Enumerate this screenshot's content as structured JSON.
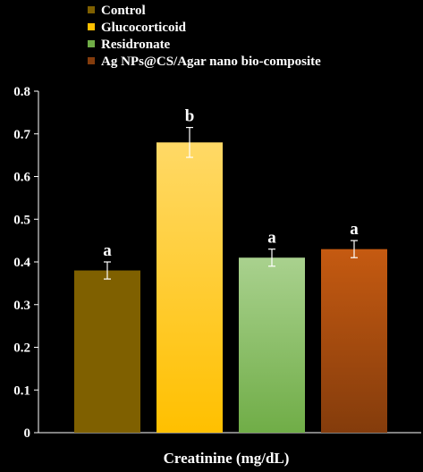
{
  "chart_data": {
    "type": "bar",
    "xlabel": "Creatinine (mg/dL)",
    "ylabel": "",
    "ylim": [
      0,
      0.8
    ],
    "yticks": [
      "0",
      "0.1",
      "0.2",
      "0.3",
      "0.4",
      "0.5",
      "0.6",
      "0.7",
      "0.8"
    ],
    "legend_position": "top-left",
    "grid": false,
    "series": [
      {
        "name": "Control",
        "value": 0.38,
        "error": 0.02,
        "label": "a",
        "color": "#7f6000",
        "color_light": "#7f6000"
      },
      {
        "name": "Glucocorticoid",
        "value": 0.68,
        "error": 0.035,
        "label": "b",
        "color": "#ffc000",
        "color_light": "#ffd966"
      },
      {
        "name": "Residronate",
        "value": 0.41,
        "error": 0.02,
        "label": "a",
        "color": "#70ad47",
        "color_light": "#a9d18e"
      },
      {
        "name": "Ag NPs@CS/Agar nano bio-composite",
        "value": 0.43,
        "error": 0.02,
        "label": "a",
        "color": "#843c0c",
        "color_light": "#c55a11"
      }
    ]
  }
}
